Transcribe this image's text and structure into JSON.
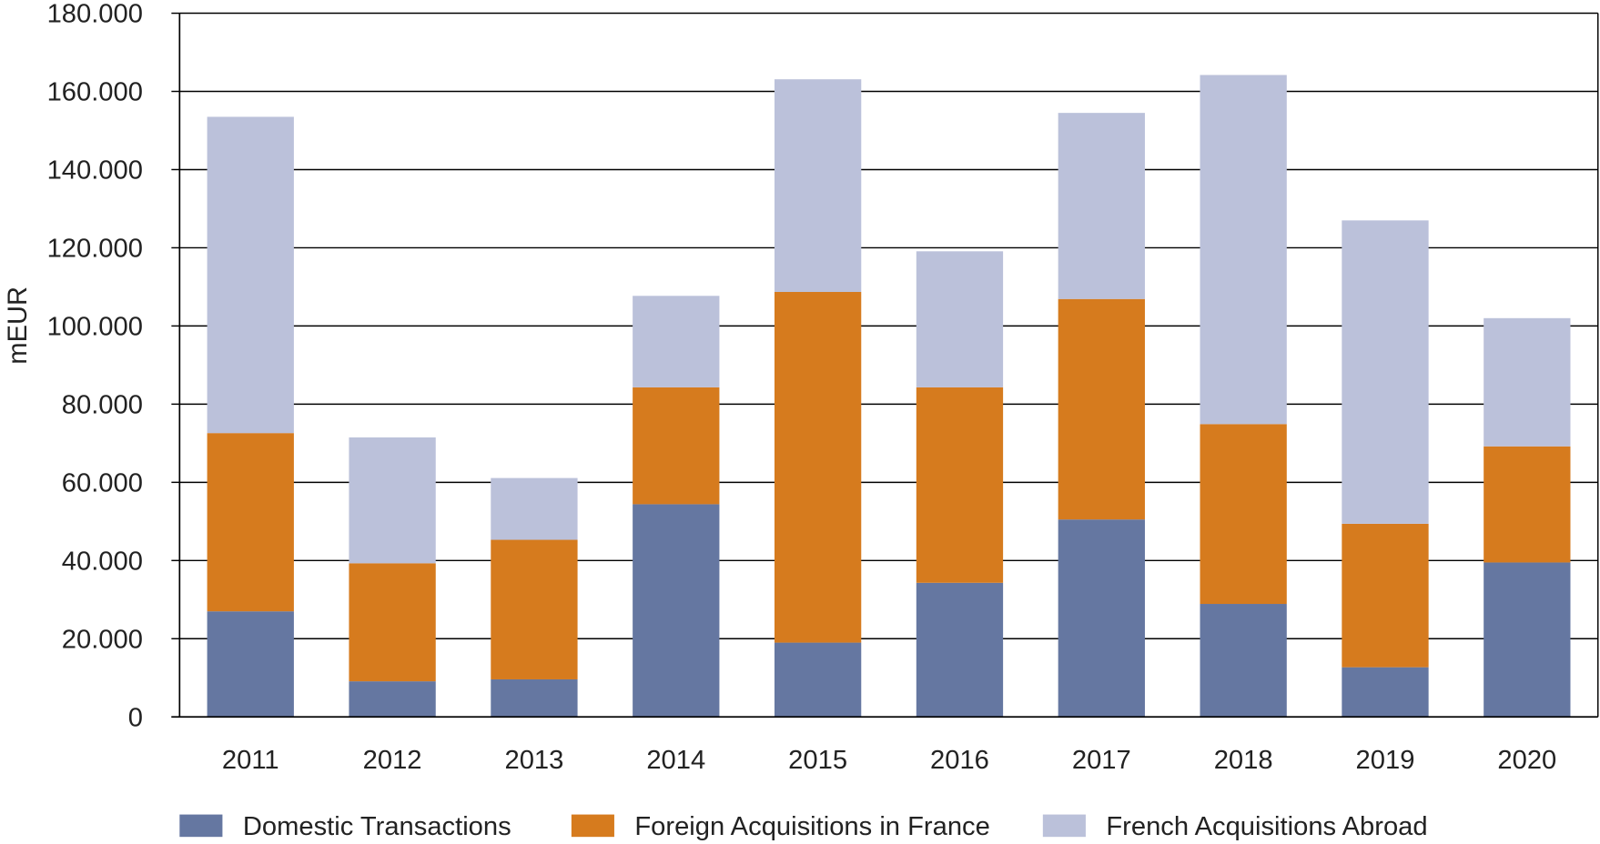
{
  "chart_data": {
    "type": "bar",
    "stacked": true,
    "title": "",
    "xlabel": "",
    "ylabel": "mEUR",
    "ylim": [
      0,
      180000
    ],
    "yticks": [
      0,
      20000,
      40000,
      60000,
      80000,
      100000,
      120000,
      140000,
      160000,
      180000
    ],
    "ytick_labels": [
      "0",
      "20.000",
      "40.000",
      "60.000",
      "80.000",
      "100.000",
      "120.000",
      "140.000",
      "160.000",
      "180.000"
    ],
    "grid": "horizontal",
    "legend_position": "bottom",
    "categories": [
      "2011",
      "2012",
      "2013",
      "2014",
      "2015",
      "2016",
      "2017",
      "2018",
      "2019",
      "2020"
    ],
    "series": [
      {
        "name": "Domestic Transactions",
        "color": "#6577a1",
        "values": [
          27000,
          9100,
          9600,
          54400,
          19000,
          34300,
          50500,
          28900,
          12700,
          39500
        ]
      },
      {
        "name": "Foreign Acquisitions in France",
        "color": "#d67b1e",
        "values": [
          45600,
          30200,
          35700,
          29900,
          89700,
          50000,
          56400,
          46000,
          36700,
          29700
        ]
      },
      {
        "name": "French Acquisitions Abroad",
        "color": "#bbc1da",
        "values": [
          80900,
          32200,
          15800,
          23400,
          54400,
          34800,
          47600,
          89300,
          77600,
          32800
        ]
      }
    ]
  }
}
